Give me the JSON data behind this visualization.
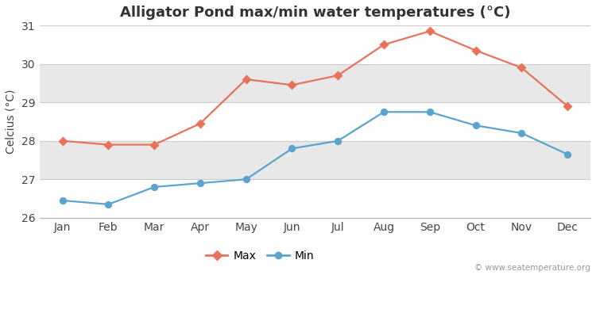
{
  "title": "Alligator Pond max/min water temperatures (°C)",
  "ylabel": "Celcius (°C)",
  "months": [
    "Jan",
    "Feb",
    "Mar",
    "Apr",
    "May",
    "Jun",
    "Jul",
    "Aug",
    "Sep",
    "Oct",
    "Nov",
    "Dec"
  ],
  "max_temps": [
    28.0,
    27.9,
    27.9,
    28.45,
    29.6,
    29.45,
    29.7,
    30.5,
    30.85,
    30.35,
    29.9,
    28.9
  ],
  "min_temps": [
    26.45,
    26.35,
    26.8,
    26.9,
    27.0,
    27.8,
    28.0,
    28.75,
    28.75,
    28.4,
    28.2,
    27.65
  ],
  "max_color": "#e8735a",
  "min_color": "#5ba4cf",
  "fig_bg_color": "#ffffff",
  "plot_bg_color": "#ffffff",
  "band_colors": [
    "#ffffff",
    "#e8e8e8"
  ],
  "ylim": [
    26,
    31
  ],
  "yticks": [
    26,
    27,
    28,
    29,
    30,
    31
  ],
  "watermark": "© www.seatemperature.org",
  "legend_max": "Max",
  "legend_min": "Min",
  "title_fontsize": 13,
  "axis_fontsize": 10,
  "legend_fontsize": 10
}
